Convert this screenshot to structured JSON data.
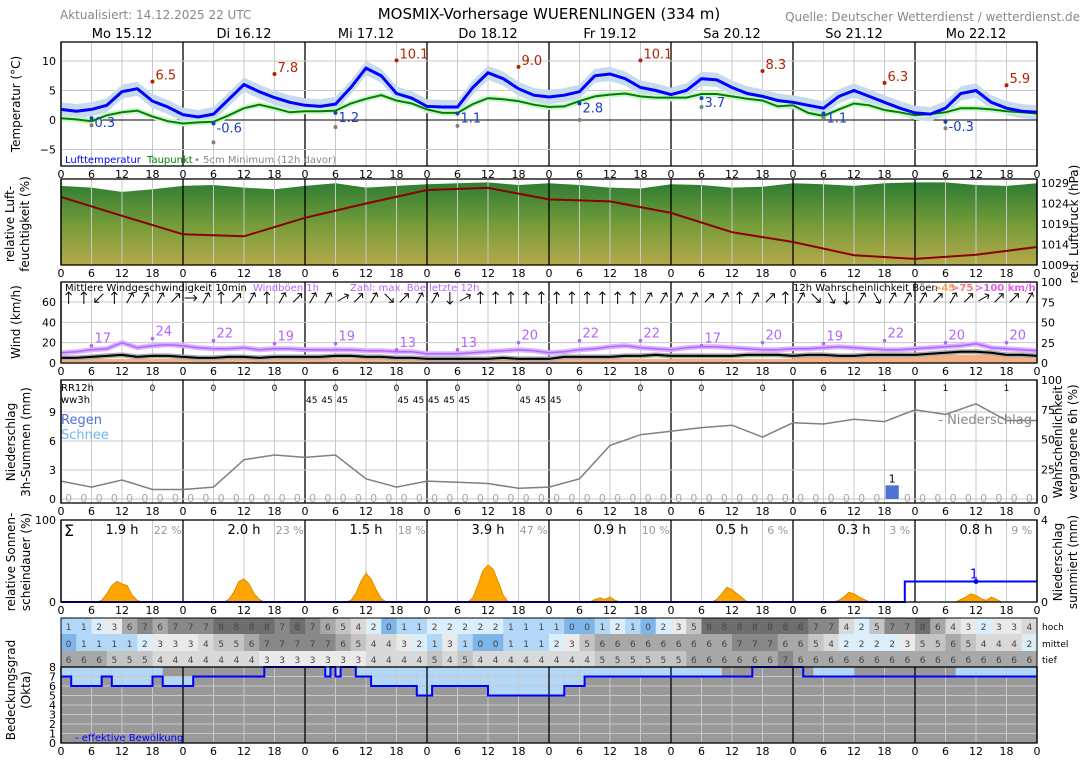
{
  "header": {
    "updated": "Aktualisiert: 14.12.2025 22 UTC",
    "title": "MOSMIX-Vorhersage WUERENLINGEN (334 m)",
    "source": "Quelle: Deutscher Wetterdienst / wetterdienst.de"
  },
  "days": [
    "Mo 15.12",
    "Di 16.12",
    "Mi 17.12",
    "Do 18.12",
    "Fr 19.12",
    "Sa 20.12",
    "So 21.12",
    "Mo 22.12"
  ],
  "x_tick_labels": [
    "0",
    "6",
    "12",
    "18",
    "0",
    "6",
    "12",
    "18",
    "0",
    "6",
    "12",
    "18",
    "0",
    "6",
    "12",
    "18",
    "0",
    "6",
    "12",
    "18",
    "0",
    "6",
    "12",
    "18",
    "0",
    "6",
    "12",
    "18",
    "0",
    "6",
    "12",
    "18",
    "0"
  ],
  "axes": {
    "temp": "Temperatur (°C)",
    "hum": [
      "relative Luft-",
      "feuchtigkeit (%)"
    ],
    "pressure": "red. Luftdruck (hPa)",
    "wind": "Wind (km/h)",
    "precip": [
      "Niederschlag",
      "3h-Summen (mm)"
    ],
    "precip_prob": [
      "Wahrscheinlichkeit",
      "vergangene 6h (%)"
    ],
    "sun": [
      "relative Sonnen-",
      "scheindauer (%)"
    ],
    "cum_precip": [
      "Niederschlag",
      "summiert (mm)"
    ],
    "cloud": [
      "Bedeckungsgrad",
      "(Okta)"
    ]
  },
  "colors": {
    "temp": "#0000ff",
    "temp_band": "#c6dbef",
    "dew": "#008000",
    "dew_band": "#ccf5cc",
    "max": "#b22200",
    "min": "#1a3fbf",
    "ground": "#808080",
    "pressure": "#8b0000",
    "gust": "#b266ff",
    "gust_band": "#d9b3ff",
    "wind": "#000000",
    "gust_prob": "#f4b183",
    "precip_prob": "#808080",
    "rain": "#4f72d6",
    "snow": "#6fb5f5",
    "sun": "#ffa500",
    "cum": "#0000ff",
    "eff_cloud": "#0000ff",
    "cloud_light": "#b3d7f7",
    "cloud_grey": "#999999"
  },
  "chart_data": [
    {
      "type": "line",
      "title": "Temperatur",
      "ylabel": "Temperatur (°C)",
      "ylim": [
        -8,
        13
      ],
      "yticks": [
        "10",
        "5",
        "0",
        "−5"
      ],
      "ytick_values": [
        10,
        5,
        0,
        -5
      ],
      "x_step_hours": 3,
      "legend": {
        "temp": "Lufttemperatur",
        "dew": "Taupunkt",
        "ground": "• 5cm Minimum (12h davor)"
      },
      "series": [
        {
          "name": "Lufttemperatur",
          "values": [
            1.8,
            1.5,
            1.8,
            2.5,
            4.8,
            5.3,
            3.2,
            2.2,
            0.9,
            0.5,
            1.0,
            3.5,
            6.0,
            4.8,
            3.8,
            3.0,
            2.5,
            2.3,
            2.7,
            5.5,
            8.8,
            7.5,
            4.5,
            3.7,
            2.3,
            2.2,
            2.2,
            5.5,
            8.0,
            7.0,
            5.3,
            4.2,
            3.9,
            4.2,
            4.8,
            7.5,
            7.8,
            7.0,
            5.5,
            5.0,
            4.3,
            5.0,
            7.0,
            6.8,
            5.5,
            4.5,
            4.0,
            3.3,
            3.0,
            2.5,
            2.0,
            4.0,
            5.0,
            4.0,
            3.0,
            2.0,
            1.2,
            1.0,
            2.0,
            4.5,
            5.0,
            3.0,
            2.0,
            1.5,
            1.3
          ]
        },
        {
          "name": "Taupunkt",
          "values": [
            0.3,
            0.1,
            -0.2,
            0.8,
            1.3,
            1.6,
            0.6,
            -0.2,
            -0.6,
            -0.4,
            -0.3,
            0.8,
            2.0,
            2.6,
            2.0,
            1.3,
            1.5,
            1.5,
            1.6,
            2.8,
            3.6,
            4.2,
            3.3,
            2.8,
            1.8,
            1.2,
            1.2,
            2.7,
            3.7,
            3.5,
            3.2,
            2.6,
            2.2,
            2.3,
            3.2,
            4.0,
            4.3,
            4.5,
            4.0,
            3.8,
            3.8,
            3.8,
            4.4,
            4.4,
            4.0,
            3.6,
            3.3,
            2.3,
            2.5,
            1.2,
            0.7,
            1.8,
            2.8,
            2.5,
            1.7,
            1.3,
            0.8,
            1.0,
            1.3,
            2.0,
            2.0,
            1.8,
            1.5,
            1.3,
            1.1
          ]
        }
      ],
      "max_hours": [
        18,
        42,
        66,
        90,
        114,
        138,
        162,
        186
      ],
      "max_values": [
        "6.5",
        "7.8",
        "10.1",
        "9.0",
        "10.1",
        "8.3",
        "6.3",
        "5.9"
      ],
      "min_hours": [
        6,
        30,
        54,
        78,
        102,
        126,
        150,
        174
      ],
      "min_values": [
        "0.3",
        "-0.6",
        "1.2",
        "1.1",
        "2.8",
        "3.7",
        "1.1",
        "-0.3"
      ],
      "ground_min_values": [
        -0.9,
        -3.8,
        -1.2,
        -1.0,
        0.0,
        2.2,
        0.3,
        -1.4
      ]
    },
    {
      "type": "area",
      "title": "Luftfeuchtigkeit und Luftdruck",
      "humidity_step_hours": 6,
      "humidity": [
        92,
        90,
        85,
        88,
        92,
        93,
        90,
        88,
        92,
        95,
        90,
        92,
        94,
        95,
        96,
        93,
        95,
        93,
        90,
        89,
        94,
        93,
        90,
        91,
        95,
        94,
        92,
        95,
        96,
        96,
        93,
        92,
        95
      ],
      "pressure_step_hours": 12,
      "pressure": [
        1025.6,
        1021.0,
        1016.5,
        1016.0,
        1020.5,
        1024.0,
        1027.3,
        1027.8,
        1025.0,
        1024.5,
        1021.7,
        1017.0,
        1014.6,
        1011.4,
        1010.5,
        1011.5,
        1013.4
      ],
      "pressure_ylim": [
        1008,
        1030.5
      ],
      "pressure_ticks": [
        "1029",
        "1024",
        "1019",
        "1014",
        "1009"
      ],
      "pressure_tick_values": [
        1029,
        1024,
        1019,
        1014,
        1009
      ]
    },
    {
      "type": "line",
      "title": "Wind",
      "ylim": [
        0,
        80
      ],
      "yticks": [
        "60",
        "40",
        "20",
        "0"
      ],
      "ytick_values": [
        60,
        40,
        20,
        0
      ],
      "right_ticks": [
        "100",
        "75",
        "50",
        "25",
        "0"
      ],
      "right_tick_values": [
        100,
        75,
        50,
        25,
        0
      ],
      "legend": {
        "wind": "Mittlere Windgeschwindigkeit 10min",
        "gust": "Windböen 1h",
        "gust_max": "Zahl: max. Böe letzte 12h",
        "prob": "12h Wahrscheinlichkeit Böen",
        "p45": ">45",
        "p75": ">75",
        "p100": ">100 km/h"
      },
      "x_step_hours": 3,
      "mean_wind": [
        5,
        5,
        6,
        7,
        8,
        6,
        7,
        7,
        6,
        5,
        5,
        6,
        6,
        5,
        6,
        6,
        6,
        6,
        7,
        7,
        6,
        6,
        5,
        5,
        4,
        4,
        4,
        4,
        4,
        5,
        4,
        4,
        4,
        6,
        6,
        6,
        6,
        7,
        7,
        8,
        7,
        7,
        7,
        7,
        7,
        8,
        8,
        8,
        7,
        8,
        8,
        7,
        7,
        8,
        8,
        8,
        8,
        9,
        10,
        11,
        11,
        10,
        8,
        8,
        7
      ],
      "gusts": [
        10,
        11,
        13,
        14,
        20,
        15,
        17,
        18,
        17,
        15,
        14,
        14,
        15,
        13,
        14,
        14,
        13,
        13,
        13,
        13,
        12,
        12,
        11,
        11,
        9,
        9,
        9,
        10,
        11,
        12,
        13,
        12,
        10,
        11,
        13,
        14,
        16,
        17,
        15,
        14,
        13,
        15,
        16,
        16,
        15,
        14,
        13,
        13,
        14,
        14,
        15,
        16,
        15,
        14,
        13,
        13,
        14,
        15,
        16,
        17,
        19,
        15,
        14,
        13,
        12
      ],
      "gust_max_hours": [
        6,
        18,
        30,
        42,
        54,
        66,
        78,
        90,
        102,
        114,
        126,
        138,
        150,
        162,
        174,
        186
      ],
      "gust_max_values": [
        "17",
        "24",
        "22",
        "19",
        "19",
        "13",
        "13",
        "20",
        "22",
        "22",
        "17",
        "20",
        "19",
        "22",
        "20",
        "20"
      ],
      "gust_prob_45": [
        5,
        5,
        5,
        5,
        5,
        5,
        5,
        5,
        5,
        5,
        5,
        5,
        10,
        10,
        10,
        10
      ],
      "direction_arrow_deg": [
        0,
        0,
        225,
        0,
        30,
        30,
        30,
        45,
        90,
        30,
        0,
        45,
        30,
        0,
        30,
        45,
        30,
        30,
        60,
        45,
        30,
        135,
        45,
        30,
        30,
        180,
        60,
        0,
        0,
        0,
        0,
        0,
        0,
        0,
        0,
        0,
        0,
        0,
        30,
        30,
        30,
        30,
        45,
        30,
        0,
        30,
        45,
        0,
        30,
        135,
        150,
        180,
        30,
        150,
        30,
        30,
        30,
        45,
        30,
        45,
        60,
        45,
        45,
        30
      ]
    },
    {
      "type": "bar",
      "title": "Niederschlag",
      "ylim": [
        0,
        12.3
      ],
      "yticks": [
        "9",
        "6",
        "3",
        "0"
      ],
      "ytick_values": [
        9,
        6,
        3,
        0
      ],
      "right_ticks": [
        "100",
        "75",
        "50",
        "25",
        "0"
      ],
      "right_tick_values": [
        100,
        75,
        50,
        25,
        0
      ],
      "labels": {
        "rr12": "RR12h",
        "ww": "ww3h",
        "rain": "Regen",
        "snow": "Schnee",
        "prob": "- Niederschlag"
      },
      "rr12_hours": [
        18,
        30,
        42,
        54,
        66,
        78,
        90,
        102,
        114,
        126,
        138,
        150,
        162,
        174,
        186
      ],
      "rr12_values": [
        "0",
        "0",
        "0",
        "0",
        "0",
        "0",
        "0",
        "0",
        "0",
        "0",
        "0",
        "0",
        "1",
        "1",
        "1"
      ],
      "ww_hours": [
        48,
        51,
        54,
        66,
        69,
        72,
        75,
        78,
        90,
        93,
        96
      ],
      "ww_values": [
        "45",
        "45",
        "45",
        "45",
        "45",
        "45",
        "45",
        "45",
        "45",
        "45",
        "45"
      ],
      "precip_3h": [
        "0",
        "0",
        "0",
        "0",
        "0",
        "0",
        "0",
        "0",
        "0",
        "0",
        "0",
        "0",
        "0",
        "0",
        "0",
        "0",
        "0",
        "0",
        "0",
        "0",
        "0",
        "0",
        "0",
        "0",
        "0",
        "0",
        "0",
        "0",
        "0",
        "0",
        "0",
        "0",
        "0",
        "0",
        "0",
        "0",
        "0",
        "0",
        "0",
        "0",
        "0",
        "0",
        "0",
        "0",
        "0",
        "0",
        "0",
        "0",
        "0",
        "0",
        "0",
        "0",
        "0",
        "0",
        "1",
        "0",
        "0",
        "0",
        "0",
        "0",
        "0",
        "0",
        "0",
        "0"
      ],
      "prob_step_hours": 6,
      "precip_prob": [
        15,
        10,
        16,
        8,
        8,
        10,
        33,
        37,
        35,
        37,
        17,
        10,
        15,
        14,
        13,
        9,
        10,
        17,
        45,
        54,
        57,
        60,
        62,
        52,
        64,
        63,
        67,
        65,
        75,
        71,
        80,
        66,
        66
      ]
    },
    {
      "type": "area",
      "title": "Sonnenscheindauer",
      "ylim": [
        0,
        100
      ],
      "yticks": [
        "100",
        "0"
      ],
      "ytick_values": [
        100,
        0
      ],
      "right_ticks": [
        "4",
        "0"
      ],
      "right_tick_values": [
        4,
        0
      ],
      "sigma": "Σ",
      "daily_hours": [
        "1.9 h",
        "2.0 h",
        "1.5 h",
        "3.9 h",
        "0.9 h",
        "0.5 h",
        "0.3 h",
        "0.8 h"
      ],
      "daily_percent": [
        "22 %",
        "23 %",
        "18 %",
        "47 %",
        "10 %",
        "6 %",
        "3 %",
        "9 %"
      ],
      "hourly_from_hour": 7,
      "hourly_relative": [
        [
          0,
          2,
          10,
          20,
          25,
          22,
          20,
          8,
          2,
          0,
          0
        ],
        [
          0,
          0,
          3,
          12,
          25,
          28,
          22,
          10,
          3,
          0,
          0
        ],
        [
          0,
          0,
          2,
          10,
          25,
          35,
          28,
          15,
          4,
          0,
          0
        ],
        [
          0,
          0,
          5,
          20,
          38,
          45,
          40,
          25,
          8,
          0,
          0
        ],
        [
          0,
          0,
          3,
          5,
          3,
          6,
          2,
          0,
          0,
          0,
          0
        ],
        [
          0,
          0,
          3,
          10,
          18,
          15,
          10,
          5,
          0,
          0,
          0
        ],
        [
          0,
          0,
          2,
          6,
          12,
          10,
          6,
          3,
          0,
          0,
          0
        ],
        [
          0,
          0,
          3,
          6,
          10,
          8,
          4,
          2,
          6,
          3,
          0
        ]
      ],
      "cum_precip_steps": [
        [
          0,
          0
        ],
        [
          166,
          1
        ],
        [
          192,
          1
        ]
      ],
      "cum_label_hour": 180,
      "cum_label": "1"
    },
    {
      "type": "heatmap",
      "title": "Bedeckungsgrad",
      "row_labels": [
        "hoch",
        "mittel",
        "tief"
      ],
      "x_step_hours": 3,
      "rows": [
        [
          1,
          1,
          2,
          3,
          6,
          7,
          6,
          7,
          7,
          7,
          8,
          8,
          8,
          8,
          7,
          8,
          7,
          6,
          5,
          4,
          2,
          0,
          1,
          1,
          2,
          2,
          2,
          2,
          2,
          1,
          1,
          1,
          1,
          0,
          0,
          1,
          2,
          1,
          0,
          2,
          3,
          5,
          8,
          8,
          8,
          8,
          8,
          8,
          8,
          7,
          7,
          4,
          2,
          5,
          7,
          7,
          8,
          6,
          4,
          3,
          2,
          3,
          3,
          4
        ],
        [
          0,
          1,
          1,
          1,
          1,
          2,
          3,
          3,
          3,
          4,
          5,
          5,
          6,
          7,
          7,
          7,
          7,
          7,
          6,
          5,
          4,
          4,
          3,
          2,
          1,
          3,
          1,
          0,
          0,
          1,
          1,
          1,
          2,
          3,
          5,
          6,
          6,
          6,
          6,
          6,
          6,
          6,
          6,
          6,
          7,
          7,
          7,
          6,
          6,
          5,
          4,
          2,
          2,
          2,
          2,
          3,
          5,
          5,
          6,
          5,
          4,
          4,
          4,
          2
        ],
        [
          6,
          6,
          6,
          5,
          5,
          5,
          4,
          4,
          4,
          4,
          4,
          4,
          4,
          3,
          3,
          3,
          3,
          3,
          3,
          3,
          4,
          4,
          4,
          4,
          5,
          4,
          5,
          4,
          4,
          4,
          4,
          4,
          4,
          4,
          4,
          5,
          5,
          5,
          5,
          5,
          5,
          6,
          6,
          6,
          6,
          6,
          6,
          7,
          6,
          6,
          6,
          6,
          6,
          6,
          6,
          6,
          6,
          6,
          6,
          6,
          6,
          6,
          6,
          6
        ]
      ],
      "yticks": [
        "8",
        "7",
        "6",
        "5",
        "4",
        "3",
        "2",
        "1",
        "0"
      ],
      "effective_steps": [
        [
          0,
          7
        ],
        [
          2,
          6
        ],
        [
          8,
          7
        ],
        [
          10,
          6
        ],
        [
          18,
          7
        ],
        [
          20,
          6
        ],
        [
          26,
          7
        ],
        [
          40,
          8
        ],
        [
          52,
          7
        ],
        [
          53,
          8
        ],
        [
          54,
          7
        ],
        [
          55,
          8
        ],
        [
          58,
          7
        ],
        [
          61,
          6
        ],
        [
          70,
          5
        ],
        [
          73,
          6
        ],
        [
          84,
          5
        ],
        [
          99,
          6
        ],
        [
          103,
          7
        ],
        [
          136,
          8
        ],
        [
          146,
          7
        ],
        [
          192,
          7
        ]
      ],
      "full_grey_ranges": [
        [
          20,
          40
        ],
        [
          130,
          148
        ],
        [
          156,
          176
        ]
      ],
      "legend": "- effektive Bewölkung"
    }
  ]
}
